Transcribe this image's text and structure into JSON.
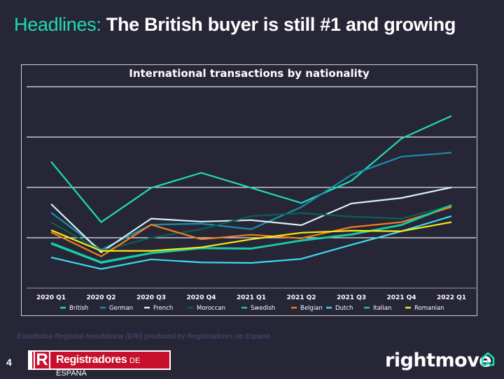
{
  "headline": {
    "prefix": "Headlines:",
    "title": "The British buyer is still #1 and growing"
  },
  "chart_data": {
    "type": "line",
    "title": "International transactions by nationality",
    "xlabel": "",
    "ylabel": "",
    "categories": [
      "2020 Q1",
      "2020 Q2",
      "2020 Q3",
      "2020 Q4",
      "2021 Q1",
      "2021 Q2",
      "2021 Q3",
      "2021 Q4",
      "2022 Q1"
    ],
    "ylim": [
      0,
      4
    ],
    "grid": true,
    "legend_position": "bottom",
    "series": [
      {
        "name": "British",
        "color": "#1fdcb0",
        "values": [
          2.51,
          1.31,
          1.99,
          2.29,
          1.99,
          1.69,
          2.13,
          2.97,
          3.42
        ]
      },
      {
        "name": "German",
        "color": "#1a8fa8",
        "values": [
          1.5,
          0.76,
          1.26,
          1.28,
          1.17,
          1.61,
          2.25,
          2.61,
          2.69
        ]
      },
      {
        "name": "French",
        "color": "#d8f0f4",
        "values": [
          1.67,
          0.71,
          1.38,
          1.32,
          1.35,
          1.25,
          1.68,
          1.79,
          2.0
        ]
      },
      {
        "name": "Moroccan",
        "color": "#0d5e52",
        "values": [
          1.31,
          0.74,
          1.0,
          1.17,
          1.43,
          1.49,
          1.42,
          1.38,
          1.64
        ]
      },
      {
        "name": "Swedish",
        "color": "#16d3b0",
        "values": [
          0.88,
          0.5,
          0.69,
          0.79,
          0.78,
          0.94,
          1.06,
          1.25,
          1.64
        ]
      },
      {
        "name": "Belgian",
        "color": "#f07e1e",
        "values": [
          1.11,
          0.63,
          1.26,
          0.97,
          1.06,
          0.99,
          1.21,
          1.31,
          1.61
        ]
      },
      {
        "name": "Dutch",
        "color": "#3fd8ef",
        "values": [
          0.61,
          0.38,
          0.57,
          0.51,
          0.5,
          0.58,
          0.86,
          1.13,
          1.43
        ]
      },
      {
        "name": "Italian",
        "color": "#19c9a4",
        "values": [
          0.9,
          0.52,
          0.7,
          0.8,
          0.79,
          0.95,
          1.07,
          1.26,
          1.65
        ]
      },
      {
        "name": "Romanian",
        "color": "#f5ea14",
        "values": [
          1.15,
          0.74,
          0.74,
          0.81,
          0.97,
          1.1,
          1.14,
          1.13,
          1.31
        ]
      }
    ]
  },
  "footer": {
    "source": "Estadística Registral Inmobiliaria (ERI) produced by Registradores de Espana",
    "page_number": "4",
    "registradores_logo": "Registradores DE ESPAÑA",
    "rightmove_logo": "rightmove"
  }
}
